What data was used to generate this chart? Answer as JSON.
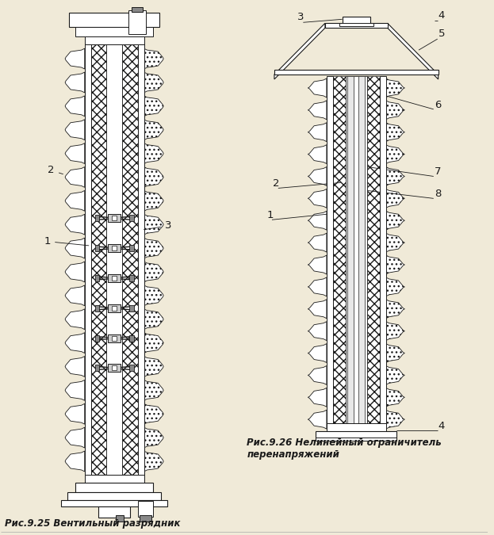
{
  "bg_color": "#f0ead8",
  "line_color": "#1a1a1a",
  "title1": "Рис.9.25 Вентильный разрядник",
  "title2": "Рис.9.26 Нелинейный ограничитель\nперенапряжений",
  "fig_width": 6.23,
  "fig_height": 6.75,
  "font_size_caption": 8.5,
  "font_size_label": 9.5
}
